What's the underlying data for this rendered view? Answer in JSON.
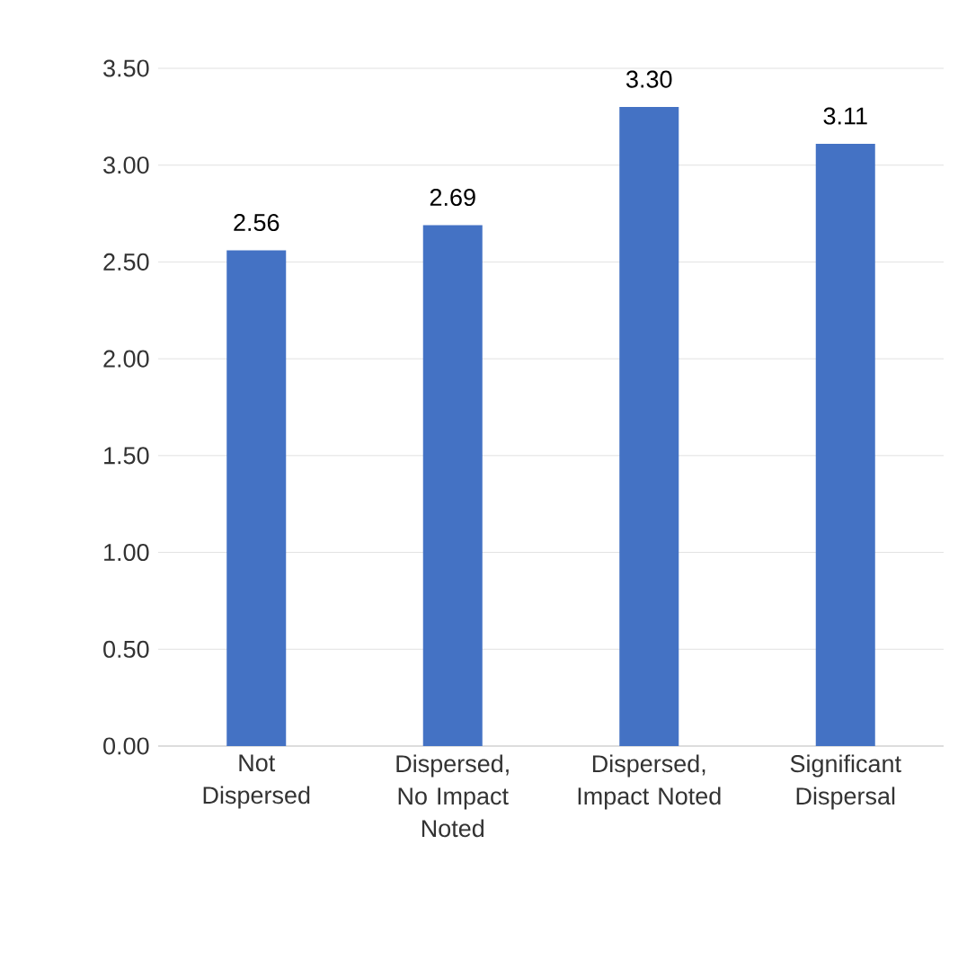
{
  "chart_data": {
    "type": "bar",
    "categories": [
      "Not Dispersed",
      "Dispersed, No Impact Noted",
      "Dispersed, Impact Noted",
      "Significant Dispersal"
    ],
    "values": [
      2.56,
      2.69,
      3.3,
      3.11
    ],
    "value_labels": [
      "2.56",
      "2.69",
      "3.30",
      "3.11"
    ],
    "color": "#4472c4",
    "ylim": [
      0,
      3.5
    ],
    "yticks": [
      {
        "value": 0,
        "label": "0.00"
      },
      {
        "value": 0.5,
        "label": "0.50"
      },
      {
        "value": 1,
        "label": "1.00"
      },
      {
        "value": 1.5,
        "label": "1.50"
      },
      {
        "value": 2,
        "label": "2.00"
      },
      {
        "value": 2.5,
        "label": "2.50"
      },
      {
        "value": 3,
        "label": "3.00"
      },
      {
        "value": 3.5,
        "label": "3.50"
      }
    ],
    "grid": "y"
  }
}
